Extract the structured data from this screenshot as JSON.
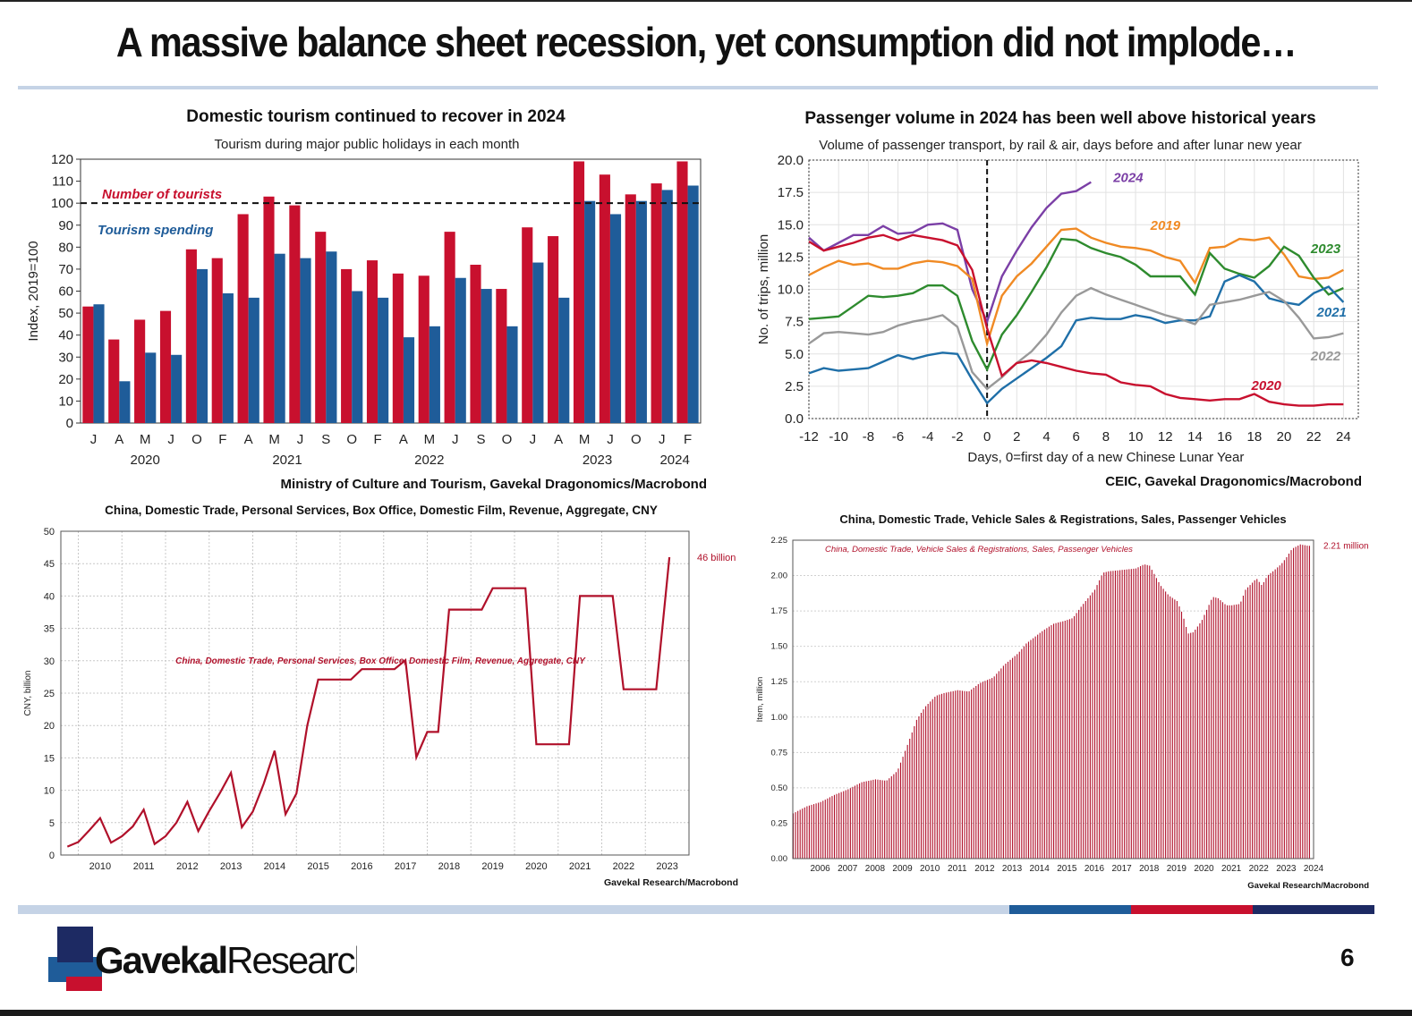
{
  "page": {
    "title": "A massive balance sheet recession, yet consumption did not implode…",
    "page_number": "6",
    "logo_text_bold": "Gavekal",
    "logo_text_light": "Research"
  },
  "chart_data": [
    {
      "id": "tourism",
      "type": "bar",
      "title": "Domestic tourism continued to recover in 2024",
      "subtitle": "Tourism during major public holidays in each month",
      "ylabel": "Index, 2019=100",
      "ylim": [
        0,
        120
      ],
      "yticks": [
        0,
        10,
        20,
        30,
        40,
        50,
        60,
        70,
        80,
        90,
        100,
        110,
        120
      ],
      "reference_line": 100,
      "categories": [
        "J",
        "A",
        "M",
        "J",
        "O",
        "F",
        "A",
        "M",
        "J",
        "S",
        "O",
        "F",
        "A",
        "M",
        "J",
        "S",
        "O",
        "J",
        "A",
        "M",
        "J",
        "O",
        "J",
        "F"
      ],
      "year_labels": [
        {
          "label": "2020",
          "index": 2
        },
        {
          "label": "2021",
          "index": 7.5
        },
        {
          "label": "2022",
          "index": 13
        },
        {
          "label": "2023",
          "index": 19.5
        },
        {
          "label": "2024",
          "index": 22.5
        }
      ],
      "series": [
        {
          "name": "Number of tourists",
          "color": "#c8102e",
          "values": [
            53,
            38,
            47,
            51,
            79,
            75,
            95,
            103,
            99,
            87,
            70,
            74,
            68,
            67,
            87,
            72,
            61,
            89,
            85,
            119,
            113,
            104,
            109,
            119
          ]
        },
        {
          "name": "Tourism spending",
          "color": "#1f5c99",
          "values": [
            54,
            19,
            32,
            31,
            70,
            59,
            57,
            77,
            75,
            78,
            60,
            57,
            39,
            44,
            66,
            61,
            44,
            73,
            57,
            101,
            95,
            101,
            106,
            108
          ]
        }
      ],
      "source": "Ministry of Culture and Tourism, Gavekal Dragonomics/Macrobond"
    },
    {
      "id": "passenger",
      "type": "line",
      "title": "Passenger volume in 2024 has been well above historical years",
      "subtitle": "Volume of passenger transport, by rail & air, days before and after lunar new year",
      "xlabel": "Days, 0=first day of a new Chinese Lunar Year",
      "ylabel": "No. of trips, million",
      "xlim": [
        -12,
        25
      ],
      "ylim": [
        0,
        20
      ],
      "xticks": [
        -12,
        -10,
        -8,
        -6,
        -4,
        -2,
        0,
        2,
        4,
        6,
        8,
        10,
        12,
        14,
        16,
        18,
        20,
        22,
        24
      ],
      "yticks": [
        "0.0",
        "2.5",
        "5.0",
        "7.5",
        "10.0",
        "12.5",
        "15.0",
        "17.5",
        "20.0"
      ],
      "x": [
        -12,
        -11,
        -10,
        -9,
        -8,
        -7,
        -6,
        -5,
        -4,
        -3,
        -2,
        -1,
        0,
        1,
        2,
        3,
        4,
        5,
        6,
        7,
        8,
        9,
        10,
        11,
        12,
        13,
        14,
        15,
        16,
        17,
        18,
        19,
        20,
        21,
        22,
        23,
        24
      ],
      "series": [
        {
          "name": "2024",
          "color": "#7b3fa6",
          "values": [
            14.0,
            13.0,
            13.6,
            14.2,
            14.2,
            14.9,
            14.3,
            14.4,
            15.0,
            15.1,
            14.6,
            10.0,
            7.5,
            11.0,
            13.0,
            14.8,
            16.3,
            17.4,
            17.6,
            18.3,
            null,
            null,
            null,
            null,
            null,
            null,
            null,
            null,
            null,
            null,
            null,
            null,
            null,
            null,
            null,
            null,
            null
          ]
        },
        {
          "name": "2019",
          "color": "#f08a24",
          "values": [
            11.1,
            11.7,
            12.2,
            11.9,
            12.0,
            11.6,
            11.6,
            12.0,
            12.2,
            12.1,
            11.8,
            10.8,
            5.8,
            9.5,
            11.0,
            12.0,
            13.3,
            14.6,
            14.7,
            14.0,
            13.6,
            13.3,
            13.2,
            13.0,
            12.5,
            12.2,
            10.5,
            13.2,
            13.3,
            13.9,
            13.8,
            14.0,
            12.7,
            11.0,
            10.8,
            10.9,
            11.5
          ]
        },
        {
          "name": "2023",
          "color": "#2e8b2e",
          "values": [
            7.7,
            7.8,
            7.9,
            8.7,
            9.5,
            9.4,
            9.5,
            9.7,
            10.3,
            10.3,
            9.5,
            6.0,
            3.8,
            6.5,
            8.0,
            9.8,
            11.7,
            13.9,
            13.8,
            13.2,
            12.8,
            12.5,
            11.9,
            11.0,
            11.0,
            11.0,
            9.6,
            12.8,
            11.6,
            11.2,
            10.9,
            11.8,
            13.3,
            12.6,
            10.9,
            9.6,
            10.1
          ]
        },
        {
          "name": "2021",
          "color": "#1f6fa8",
          "values": [
            3.5,
            3.9,
            3.7,
            3.8,
            3.9,
            4.4,
            4.9,
            4.6,
            4.9,
            5.1,
            5.0,
            3.0,
            1.2,
            2.3,
            3.1,
            3.9,
            4.7,
            5.6,
            7.6,
            7.8,
            7.7,
            7.7,
            8.0,
            7.8,
            7.4,
            7.6,
            7.6,
            7.9,
            10.6,
            11.1,
            10.6,
            9.3,
            9.0,
            8.8,
            9.7,
            10.2,
            9.0
          ]
        },
        {
          "name": "2022",
          "color": "#999999",
          "values": [
            5.8,
            6.6,
            6.7,
            6.6,
            6.5,
            6.7,
            7.2,
            7.5,
            7.7,
            8.0,
            7.1,
            3.6,
            2.3,
            3.2,
            4.3,
            5.2,
            6.5,
            8.2,
            9.5,
            10.1,
            9.6,
            9.2,
            8.8,
            8.4,
            8.0,
            7.7,
            7.3,
            8.8,
            9.0,
            9.2,
            9.5,
            9.8,
            9.1,
            7.8,
            6.2,
            6.3,
            6.6
          ]
        },
        {
          "name": "2020",
          "color": "#c8102e",
          "values": [
            13.7,
            13.0,
            13.3,
            13.6,
            14.0,
            14.2,
            13.8,
            14.2,
            14.0,
            13.8,
            13.4,
            11.5,
            7.0,
            3.3,
            4.3,
            4.5,
            4.3,
            4.0,
            3.7,
            3.5,
            3.4,
            2.8,
            2.6,
            2.5,
            1.9,
            1.6,
            1.5,
            1.4,
            1.5,
            1.5,
            1.9,
            1.3,
            1.1,
            1.0,
            1.0,
            1.1,
            1.1
          ]
        }
      ],
      "source": "CEIC, Gavekal Dragonomics/Macrobond"
    },
    {
      "id": "boxoffice",
      "type": "line",
      "title": "China, Domestic Trade, Personal Services, Box Office, Domestic Film, Revenue, Aggregate, CNY",
      "series_label": "China, Domestic Trade, Personal Services, Box Office, Domestic Film, Revenue, Aggregate, CNY",
      "ylabel": "CNY, billion",
      "ylim": [
        0,
        50
      ],
      "yticks": [
        0,
        5,
        10,
        15,
        20,
        25,
        30,
        35,
        40,
        45,
        50
      ],
      "xlim": [
        2009.6,
        2024.0
      ],
      "xticks": [
        "2010",
        "2011",
        "2012",
        "2013",
        "2014",
        "2015",
        "2016",
        "2017",
        "2018",
        "2019",
        "2020",
        "2021",
        "2022",
        "2023"
      ],
      "color": "#b0102a",
      "end_label": "46 billion",
      "x": [
        2009.75,
        2010.0,
        2010.25,
        2010.5,
        2010.75,
        2011.0,
        2011.25,
        2011.5,
        2011.75,
        2012.0,
        2012.25,
        2012.5,
        2012.75,
        2013.0,
        2013.25,
        2013.5,
        2013.75,
        2014.0,
        2014.25,
        2014.5,
        2014.75,
        2015.0,
        2015.25,
        2015.5,
        2016.0,
        2016.25,
        2016.5,
        2017.0,
        2017.25,
        2017.5,
        2017.75,
        2018.0,
        2018.25,
        2018.5,
        2018.75,
        2019.0,
        2019.25,
        2019.5,
        2020.0,
        2020.25,
        2020.5,
        2020.75,
        2021.0,
        2021.25,
        2021.5,
        2021.75,
        2022.0,
        2022.25,
        2022.5,
        2022.75,
        2023.0,
        2023.25,
        2023.55
      ],
      "values": [
        1.3,
        2.0,
        3.8,
        5.7,
        1.9,
        2.9,
        4.4,
        7.0,
        1.7,
        2.9,
        5.0,
        8.2,
        3.7,
        6.8,
        9.6,
        12.7,
        4.3,
        6.7,
        11.0,
        16.1,
        6.3,
        9.5,
        20.0,
        27.1,
        27.1,
        27.1,
        28.7,
        28.7,
        28.7,
        30.1,
        15.1,
        19.0,
        19.0,
        37.9,
        37.9,
        37.9,
        37.9,
        41.2,
        41.2,
        41.2,
        17.1,
        17.1,
        17.1,
        17.1,
        40.0,
        40.0,
        40.0,
        40.0,
        25.6,
        25.6,
        25.6,
        25.6,
        46.0
      ],
      "source": "Gavekal Research/Macrobond"
    },
    {
      "id": "vehicles",
      "type": "bar",
      "title": "China, Domestic Trade, Vehicle Sales & Registrations, Sales, Passenger Vehicles",
      "series_label": "China, Domestic Trade, Vehicle Sales & Registrations, Sales, Passenger Vehicles",
      "ylabel": "Item, million",
      "ylim": [
        0,
        2.25
      ],
      "yticks": [
        "0.00",
        "0.25",
        "0.50",
        "0.75",
        "1.00",
        "1.25",
        "1.50",
        "1.75",
        "2.00",
        "2.25"
      ],
      "xlim": [
        2005.5,
        2024.5
      ],
      "xticks": [
        "2006",
        "2007",
        "2008",
        "2009",
        "2010",
        "2011",
        "2012",
        "2013",
        "2014",
        "2015",
        "2016",
        "2017",
        "2018",
        "2019",
        "2020",
        "2021",
        "2022",
        "2023",
        "2024"
      ],
      "color": "#b0102a",
      "end_label": "2.21 million",
      "anchors_x": [
        2005.5,
        2006.0,
        2006.5,
        2007.0,
        2007.5,
        2008.0,
        2008.5,
        2008.9,
        2009.3,
        2009.7,
        2010.0,
        2010.3,
        2010.7,
        2011.0,
        2011.5,
        2011.9,
        2012.3,
        2012.8,
        2013.2,
        2013.7,
        2014.0,
        2014.6,
        2015.0,
        2015.4,
        2015.7,
        2016.0,
        2016.5,
        2016.8,
        2017.0,
        2017.5,
        2018.0,
        2018.3,
        2018.5,
        2018.9,
        2019.2,
        2019.5,
        2019.7,
        2019.9,
        2020.1,
        2020.4,
        2020.8,
        2021.0,
        2021.3,
        2021.5,
        2021.8,
        2022.0,
        2022.4,
        2022.6,
        2022.8,
        2023.0,
        2023.3,
        2023.5,
        2023.7,
        2024.0,
        2024.3
      ],
      "anchors_y": [
        0.32,
        0.37,
        0.4,
        0.45,
        0.49,
        0.54,
        0.56,
        0.55,
        0.62,
        0.82,
        0.98,
        1.07,
        1.15,
        1.17,
        1.19,
        1.18,
        1.24,
        1.28,
        1.37,
        1.45,
        1.52,
        1.61,
        1.66,
        1.68,
        1.7,
        1.78,
        1.9,
        2.02,
        2.03,
        2.04,
        2.05,
        2.08,
        2.07,
        1.93,
        1.86,
        1.82,
        1.73,
        1.59,
        1.6,
        1.68,
        1.85,
        1.84,
        1.79,
        1.79,
        1.8,
        1.9,
        1.98,
        1.93,
        2.0,
        2.03,
        2.08,
        2.13,
        2.19,
        2.22,
        2.21
      ],
      "source": "Gavekal Research/Macrobond"
    }
  ],
  "colors": {
    "accent_red": "#c8102e",
    "accent_blue": "#1f5c99",
    "navy": "#1d2a63",
    "rule": "#c5d3e6"
  }
}
